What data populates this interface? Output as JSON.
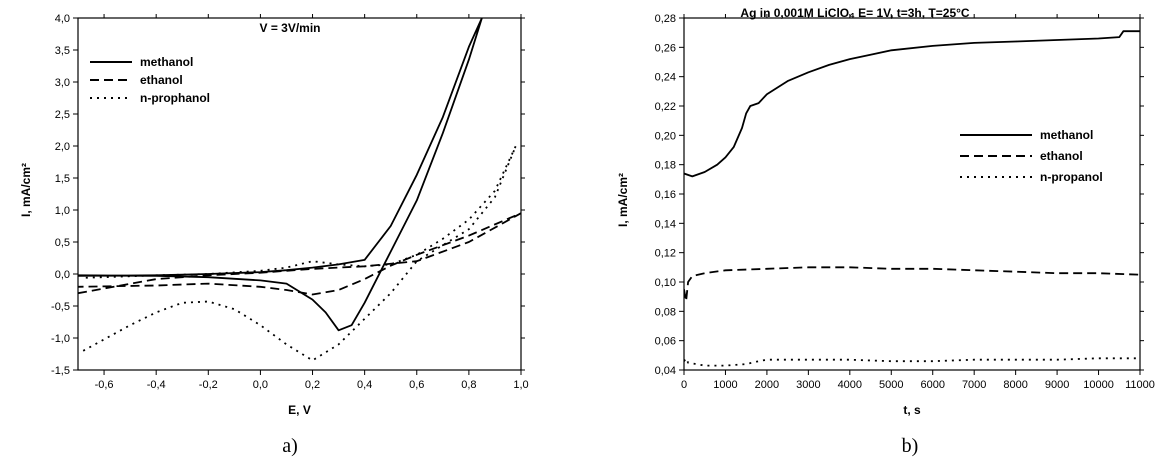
{
  "chart_data": [
    {
      "type": "line",
      "title": "V = 3V/min",
      "xlabel": "E, V",
      "ylabel": "I, mA/cm²",
      "xlim": [
        -0.7,
        1.0
      ],
      "ylim": [
        -1.5,
        4.0
      ],
      "x_ticks": [
        "-0,6",
        "-0,4",
        "-0,2",
        "0,0",
        "0,2",
        "0,4",
        "0,6",
        "0,8",
        "1,0"
      ],
      "y_ticks": [
        "-1,5",
        "-1,0",
        "-0,5",
        "0,0",
        "0,5",
        "1,0",
        "1,5",
        "2,0",
        "2,5",
        "3,0",
        "3,5",
        "4,0"
      ],
      "legend_position": "upper-left",
      "caption": "a)",
      "series": [
        {
          "name": "methanol",
          "style": "solid",
          "x": [
            -0.7,
            -0.4,
            -0.2,
            0.0,
            0.1,
            0.2,
            0.3,
            0.4,
            0.5,
            0.6,
            0.7,
            0.8,
            0.85,
            0.85,
            0.8,
            0.7,
            0.6,
            0.5,
            0.4,
            0.35,
            0.3,
            0.25,
            0.2,
            0.1,
            0.0,
            -0.2,
            -0.4,
            -0.7
          ],
          "y": [
            -0.03,
            -0.02,
            0.0,
            0.03,
            0.06,
            0.1,
            0.15,
            0.22,
            0.75,
            1.55,
            2.45,
            3.55,
            4.0,
            4.0,
            3.35,
            2.2,
            1.15,
            0.35,
            -0.45,
            -0.8,
            -0.88,
            -0.6,
            -0.4,
            -0.15,
            -0.1,
            -0.05,
            -0.03,
            -0.02
          ]
        },
        {
          "name": "ethanol",
          "style": "dashed",
          "x": [
            -0.7,
            -0.4,
            -0.2,
            0.0,
            0.2,
            0.4,
            0.6,
            0.8,
            1.0,
            1.0,
            0.8,
            0.6,
            0.5,
            0.4,
            0.3,
            0.2,
            0.1,
            0.0,
            -0.2,
            -0.4,
            -0.7
          ],
          "y": [
            -0.3,
            -0.08,
            -0.02,
            0.02,
            0.08,
            0.12,
            0.2,
            0.5,
            0.95,
            0.95,
            0.6,
            0.3,
            0.13,
            -0.08,
            -0.25,
            -0.32,
            -0.25,
            -0.2,
            -0.15,
            -0.18,
            -0.2
          ]
        },
        {
          "name": "n-prophanol",
          "style": "dotted",
          "x": [
            -0.68,
            -0.5,
            -0.4,
            -0.3,
            -0.2,
            -0.1,
            0.0,
            0.1,
            0.2,
            0.3,
            0.4,
            0.5,
            0.6,
            0.7,
            0.8,
            0.9,
            0.98,
            0.98,
            0.9,
            0.8,
            0.7,
            0.6,
            0.5,
            0.4,
            0.3,
            0.2,
            0.1,
            0.0,
            -0.2,
            -0.4,
            -0.6,
            -0.68
          ],
          "y": [
            -1.2,
            -0.8,
            -0.6,
            -0.45,
            -0.43,
            -0.55,
            -0.8,
            -1.1,
            -1.35,
            -1.1,
            -0.7,
            -0.3,
            0.2,
            0.45,
            0.7,
            1.2,
            2.0,
            2.0,
            1.3,
            0.85,
            0.55,
            0.3,
            0.15,
            0.12,
            0.15,
            0.2,
            0.1,
            0.05,
            0.0,
            -0.02,
            -0.05,
            -0.06
          ]
        }
      ]
    },
    {
      "type": "line",
      "title": "Ag in 0,001M LiClO₄ E= 1V, t=3h, T=25°C",
      "xlabel": "t, s",
      "ylabel": "I, mA/cm²",
      "xlim": [
        0,
        11000
      ],
      "ylim": [
        0.04,
        0.28
      ],
      "x_ticks": [
        "0",
        "1000",
        "2000",
        "3000",
        "4000",
        "5000",
        "6000",
        "7000",
        "8000",
        "9000",
        "10000",
        "11000"
      ],
      "y_ticks": [
        "0,04",
        "0,06",
        "0,08",
        "0,10",
        "0,12",
        "0,14",
        "0,16",
        "0,18",
        "0,20",
        "0,22",
        "0,24",
        "0,26",
        "0,28"
      ],
      "legend_position": "right",
      "caption": "b)",
      "series": [
        {
          "name": "methanol",
          "style": "solid",
          "x": [
            0,
            200,
            500,
            800,
            1000,
            1200,
            1400,
            1500,
            1600,
            1800,
            2000,
            2500,
            3000,
            3500,
            4000,
            4500,
            5000,
            6000,
            7000,
            8000,
            9000,
            10000,
            10500,
            10600,
            11000
          ],
          "y": [
            0.174,
            0.172,
            0.175,
            0.18,
            0.185,
            0.192,
            0.205,
            0.215,
            0.22,
            0.222,
            0.228,
            0.237,
            0.243,
            0.248,
            0.252,
            0.255,
            0.258,
            0.261,
            0.263,
            0.264,
            0.265,
            0.266,
            0.267,
            0.271,
            0.271
          ]
        },
        {
          "name": "ethanol",
          "style": "dashed",
          "x": [
            0,
            50,
            100,
            200,
            500,
            1000,
            2000,
            3000,
            4000,
            5000,
            6000,
            7000,
            8000,
            9000,
            10000,
            11000
          ],
          "y": [
            0.095,
            0.087,
            0.1,
            0.104,
            0.106,
            0.108,
            0.109,
            0.11,
            0.11,
            0.109,
            0.109,
            0.108,
            0.107,
            0.106,
            0.106,
            0.105
          ]
        },
        {
          "name": "n-propanol",
          "style": "dotted",
          "x": [
            0,
            50,
            100,
            300,
            500,
            1000,
            1500,
            1800,
            2000,
            2500,
            3000,
            4000,
            5000,
            6000,
            7000,
            8000,
            9000,
            10000,
            11000
          ],
          "y": [
            0.046,
            0.048,
            0.045,
            0.044,
            0.043,
            0.043,
            0.044,
            0.046,
            0.047,
            0.047,
            0.047,
            0.047,
            0.046,
            0.046,
            0.047,
            0.047,
            0.047,
            0.048,
            0.048
          ]
        }
      ]
    }
  ]
}
